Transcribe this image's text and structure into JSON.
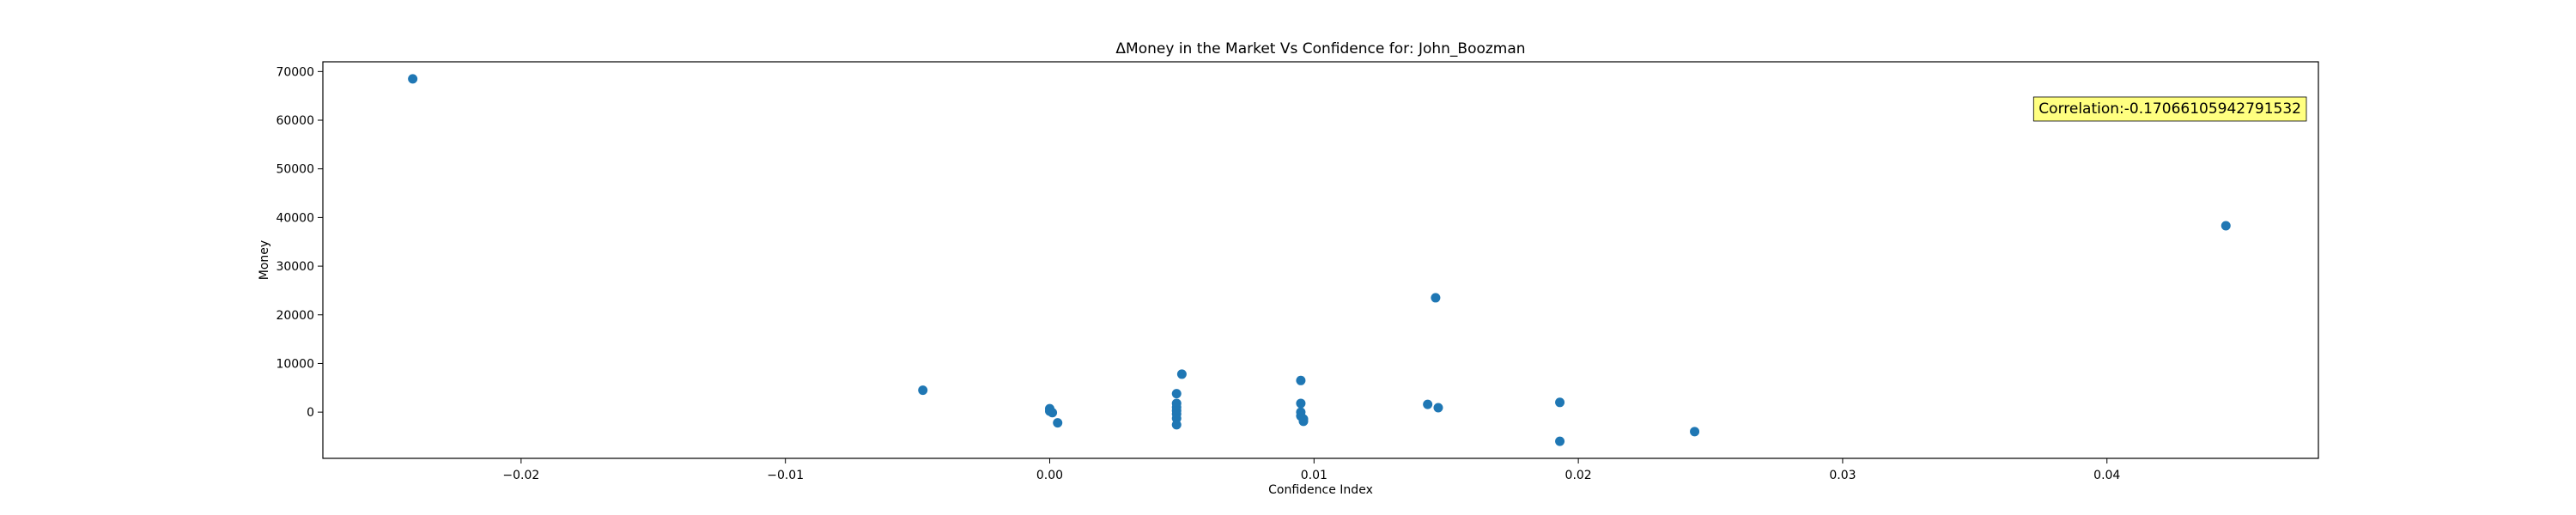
{
  "chart_data": {
    "type": "scatter",
    "title": "ΔMoney in the Market Vs Confidence for: John_Boozman",
    "xlabel": "Confidence Index",
    "ylabel": "Money",
    "xlim": [
      -0.0275,
      0.048
    ],
    "ylim": [
      -9500,
      72000
    ],
    "xticks": [
      -0.02,
      -0.01,
      0.0,
      0.01,
      0.02,
      0.03,
      0.04
    ],
    "xtick_labels": [
      "−0.02",
      "−0.01",
      "0.00",
      "0.01",
      "0.02",
      "0.03",
      "0.04"
    ],
    "yticks": [
      0,
      10000,
      20000,
      30000,
      40000,
      50000,
      60000,
      70000
    ],
    "ytick_labels": [
      "0",
      "10000",
      "20000",
      "30000",
      "40000",
      "50000",
      "60000",
      "70000"
    ],
    "grid": false,
    "marker_color": "#1f77b4",
    "annotation": {
      "text": "Correlation:-0.17066105942791532",
      "position": "top-right",
      "background": "#ffff80"
    },
    "points": [
      {
        "x": -0.0241,
        "y": 68500
      },
      {
        "x": -0.0048,
        "y": 4500
      },
      {
        "x": 0.0,
        "y": 700
      },
      {
        "x": 0.0,
        "y": 200
      },
      {
        "x": 0.0001,
        "y": -100
      },
      {
        "x": 0.0003,
        "y": -2200
      },
      {
        "x": 0.0048,
        "y": 3800
      },
      {
        "x": 0.0048,
        "y": 1800
      },
      {
        "x": 0.0048,
        "y": 1000
      },
      {
        "x": 0.0048,
        "y": 300
      },
      {
        "x": 0.0048,
        "y": -400
      },
      {
        "x": 0.0048,
        "y": -1300
      },
      {
        "x": 0.0048,
        "y": -2600
      },
      {
        "x": 0.005,
        "y": 7800
      },
      {
        "x": 0.0095,
        "y": 6500
      },
      {
        "x": 0.0095,
        "y": 1800
      },
      {
        "x": 0.0095,
        "y": 0
      },
      {
        "x": 0.0095,
        "y": -800
      },
      {
        "x": 0.0096,
        "y": -1400
      },
      {
        "x": 0.0096,
        "y": -1900
      },
      {
        "x": 0.0143,
        "y": 1600
      },
      {
        "x": 0.0146,
        "y": 23500
      },
      {
        "x": 0.0147,
        "y": 900
      },
      {
        "x": 0.0193,
        "y": 2000
      },
      {
        "x": 0.0193,
        "y": -6000
      },
      {
        "x": 0.0244,
        "y": -4000
      },
      {
        "x": 0.0445,
        "y": 38300
      }
    ]
  }
}
